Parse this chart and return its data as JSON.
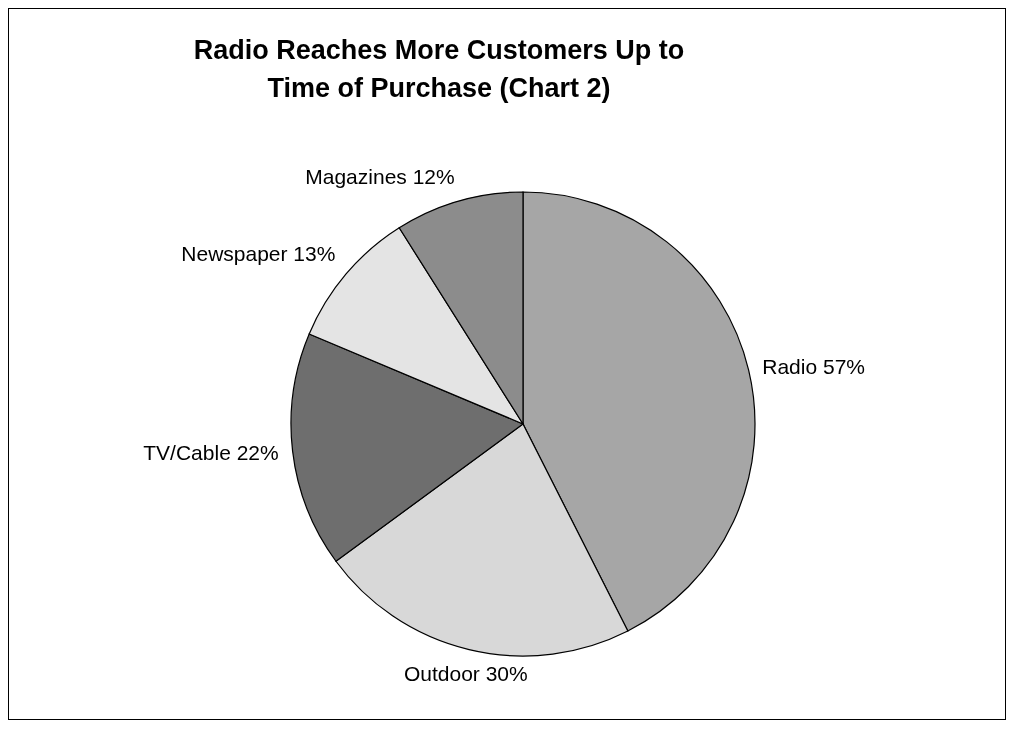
{
  "chart_data": {
    "type": "pie",
    "title": "Radio Reaches More Customers Up to Time of Purchase (Chart 2)",
    "categories": [
      "Radio",
      "Outdoor",
      "TV/Cable",
      "Newspaper",
      "Magazines"
    ],
    "values": [
      57,
      30,
      22,
      13,
      12
    ],
    "value_labels": [
      "57%",
      "30%",
      "22%",
      "13%",
      "12%"
    ],
    "colors": [
      "#a6a6a6",
      "#d8d8d8",
      "#6e6e6e",
      "#e4e4e4",
      "#8c8c8c"
    ],
    "legend": false
  }
}
